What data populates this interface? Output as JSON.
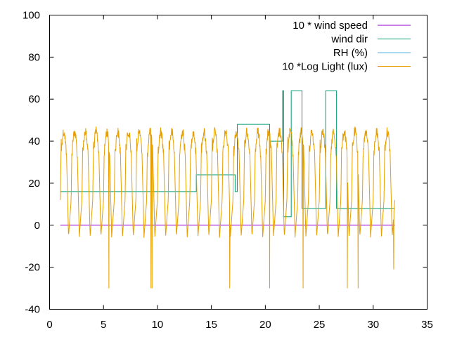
{
  "chart_data": {
    "type": "line",
    "title": "",
    "xlabel": "",
    "ylabel": "",
    "xlim": [
      0,
      35
    ],
    "ylim": [
      -40,
      100
    ],
    "x_ticks": [
      0,
      5,
      10,
      15,
      20,
      25,
      30,
      35
    ],
    "y_ticks": [
      -40,
      -20,
      0,
      20,
      40,
      60,
      80,
      100
    ],
    "x_tick_labels": [
      "0",
      "5",
      "10",
      "15",
      "20",
      "25",
      "30",
      "35"
    ],
    "y_tick_labels": [
      "-40",
      "-20",
      "0",
      "20",
      "40",
      "60",
      "80",
      "100"
    ],
    "grid": false,
    "legend_position": "top-right",
    "series": [
      {
        "name": "10 * wind speed",
        "color": "#9400d3",
        "style": "line",
        "points": [
          [
            1.0,
            0
          ],
          [
            32.0,
            0
          ]
        ]
      },
      {
        "name": "wind dir",
        "color": "#009e73",
        "style": "steps",
        "points": [
          [
            1.0,
            16
          ],
          [
            13.6,
            16
          ],
          [
            13.6,
            24
          ],
          [
            17.2,
            24
          ],
          [
            17.2,
            16
          ],
          [
            17.4,
            16
          ],
          [
            17.4,
            48
          ],
          [
            20.4,
            48
          ],
          [
            20.4,
            40
          ],
          [
            21.6,
            40
          ],
          [
            21.6,
            64
          ],
          [
            21.7,
            64
          ],
          [
            21.7,
            4
          ],
          [
            22.4,
            4
          ],
          [
            22.4,
            64
          ],
          [
            23.4,
            64
          ],
          [
            23.4,
            8
          ],
          [
            25.6,
            8
          ],
          [
            25.6,
            64
          ],
          [
            26.6,
            64
          ],
          [
            26.6,
            8
          ],
          [
            32.0,
            8
          ]
        ]
      },
      {
        "name": "RH (%)",
        "color": "#56b4e9",
        "style": "line",
        "points": []
      },
      {
        "name": "10 *Log Light (lux)",
        "color": "#e69f00",
        "style": "line",
        "daily_pattern": {
          "x_start": 1.0,
          "x_end": 32.0,
          "cycles": 31,
          "day_peak": 47,
          "typical_night_low": -6,
          "deep_lows": [
            [
              5.5,
              -30
            ],
            [
              9.4,
              -30
            ],
            [
              9.5,
              -30
            ],
            [
              16.7,
              -30
            ],
            [
              20.4,
              -30
            ],
            [
              23.5,
              -30
            ],
            [
              27.6,
              -30
            ],
            [
              28.6,
              -30
            ],
            [
              31.9,
              -21
            ]
          ]
        }
      }
    ]
  }
}
